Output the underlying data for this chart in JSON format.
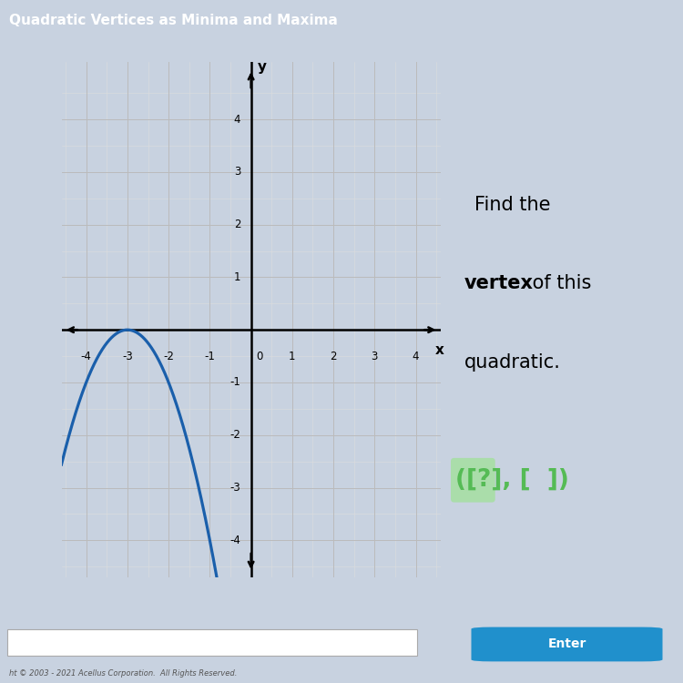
{
  "title": "Quadratic Vertices as Minima and Maxima",
  "title_bg_color": "#3A8FD0",
  "title_text_color": "white",
  "title_fontsize": 11,
  "title_stripe_color": "#1A6AAA",
  "bg_color": "#C8D2E0",
  "plot_bg_color": "#F8F8F8",
  "plot_border_color": "#999999",
  "grid_major_color": "#BBBBBB",
  "grid_minor_color": "#DDDDDD",
  "axis_color": "black",
  "curve_color": "#1A5FAB",
  "curve_linewidth": 2.3,
  "xlim": [
    -4.6,
    4.6
  ],
  "ylim": [
    -4.7,
    5.1
  ],
  "xticks": [
    -4,
    -3,
    -2,
    -1,
    0,
    1,
    2,
    3,
    4
  ],
  "yticks": [
    -4,
    -3,
    -2,
    -1,
    1,
    2,
    3,
    4
  ],
  "xlabel": "x",
  "ylabel": "y",
  "vertex_x": -3,
  "vertex_y": 0,
  "parabola_a": -1,
  "text_find": "Find the",
  "text_vertex": "vertex",
  "text_ofthis": " of this",
  "text_quadratic": "quadratic.",
  "answer_text": "([?], [  ])",
  "answer_color": "#55BB55",
  "answer_bg_color": "#AADDAA",
  "enter_btn_color": "#2090CC",
  "enter_btn_text": "Enter",
  "footer_bg": "#E4E4E4",
  "copyright_text": "ht © 2003 - 2021 Acellus Corporation.  All Rights Reserved."
}
